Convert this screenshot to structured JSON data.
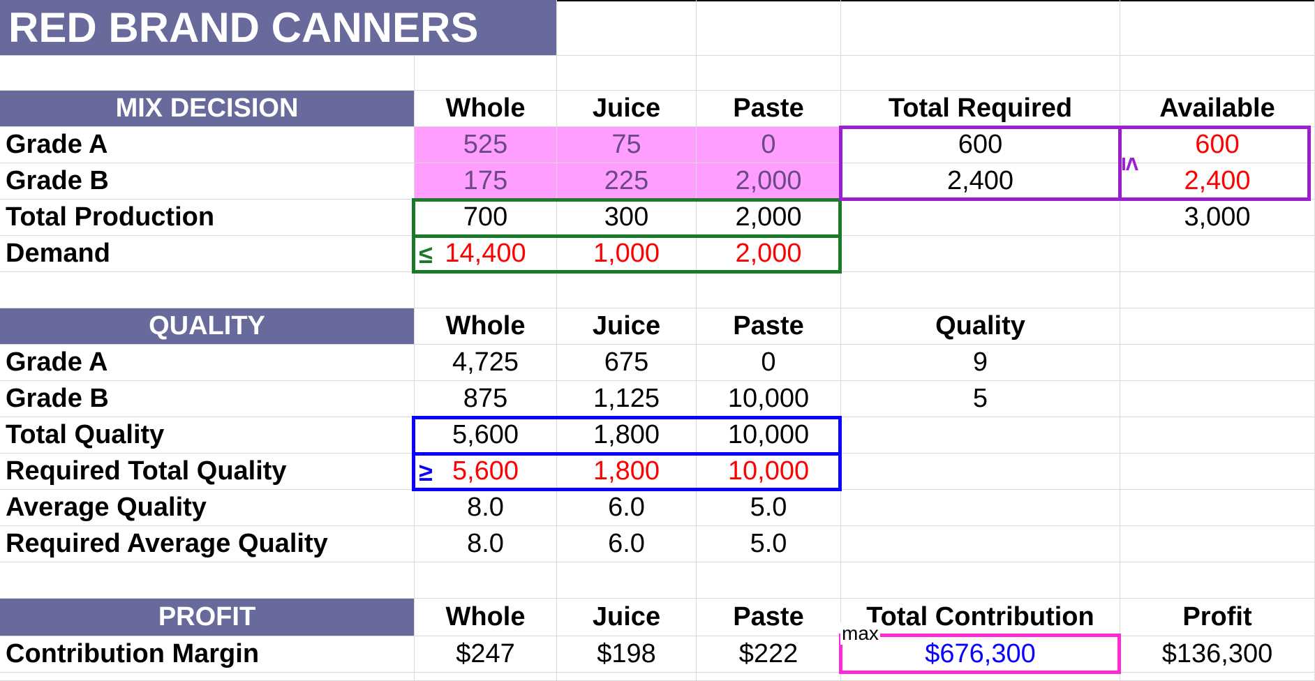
{
  "title": "RED BRAND CANNERS",
  "mix": {
    "header": "MIX DECISION",
    "cols": [
      "Whole",
      "Juice",
      "Paste",
      "Total Required",
      "Available"
    ],
    "grade_a": {
      "label": "Grade A",
      "whole": "525",
      "juice": "75",
      "paste": "0",
      "total": "600",
      "available": "600"
    },
    "grade_b": {
      "label": "Grade B",
      "whole": "175",
      "juice": "225",
      "paste": "2,000",
      "total": "2,400",
      "available": "2,400"
    },
    "total_production": {
      "label": "Total Production",
      "whole": "700",
      "juice": "300",
      "paste": "2,000",
      "available": "3,000"
    },
    "demand": {
      "label": "Demand",
      "whole": "14,400",
      "juice": "1,000",
      "paste": "2,000"
    },
    "le_symbol": "≤",
    "avail_symbol": "≤"
  },
  "quality": {
    "header": "QUALITY",
    "cols": [
      "Whole",
      "Juice",
      "Paste",
      "Quality"
    ],
    "grade_a": {
      "label": "Grade A",
      "whole": "4,725",
      "juice": "675",
      "paste": "0",
      "quality": "9"
    },
    "grade_b": {
      "label": "Grade B",
      "whole": "875",
      "juice": "1,125",
      "paste": "10,000",
      "quality": "5"
    },
    "total": {
      "label": "Total Quality",
      "whole": "5,600",
      "juice": "1,800",
      "paste": "10,000"
    },
    "required_total": {
      "label": "Required Total Quality",
      "whole": "5,600",
      "juice": "1,800",
      "paste": "10,000"
    },
    "average": {
      "label": "Average Quality",
      "whole": "8.0",
      "juice": "6.0",
      "paste": "5.0"
    },
    "required_average": {
      "label": "Required Average Quality",
      "whole": "8.0",
      "juice": "6.0",
      "paste": "5.0"
    },
    "ge_symbol": "≥"
  },
  "profit": {
    "header": "PROFIT",
    "cols": [
      "Whole",
      "Juice",
      "Paste",
      "Total Contribution",
      "Profit"
    ],
    "margin": {
      "label": "Contribution Margin",
      "whole": "$247",
      "juice": "$198",
      "paste": "$222",
      "total": "$676,300",
      "profit": "$136,300"
    },
    "max_label": "max"
  },
  "colors": {
    "band": "#676a9a",
    "decision": "#ff9eff",
    "green": "#1a7a2a",
    "purple": "#9b1fd1",
    "blue": "#0a00ff",
    "magenta": "#ff2ad4",
    "red": "#ff0000"
  }
}
